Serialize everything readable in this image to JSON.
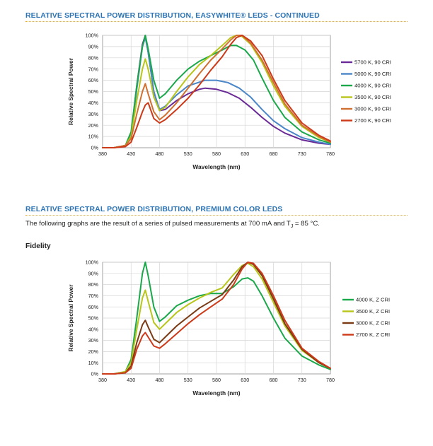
{
  "headings": {
    "easywhite": "RELATIVE SPECTRAL POWER DISTRIBUTION, EASYWHITE® LEDS - CONTINUED",
    "premium": "RELATIVE SPECTRAL POWER DISTRIBUTION, PREMIUM COLOR LEDS"
  },
  "intro": {
    "text_before": "The following graphs are the result of a series of pulsed measurements at 700 mA and T",
    "subscript": "J",
    "text_after": " = 85 °C."
  },
  "subheading": "Fidelity",
  "chart_data": [
    {
      "type": "line",
      "xlabel": "Wavelength (nm)",
      "ylabel": "Relative Spectral Power",
      "xlim": [
        380,
        780
      ],
      "ylim": [
        0,
        100
      ],
      "xticks": [
        "380",
        "430",
        "480",
        "530",
        "580",
        "630",
        "680",
        "730",
        "780"
      ],
      "yticks": [
        "0%",
        "10%",
        "20%",
        "30%",
        "40%",
        "50%",
        "60%",
        "70%",
        "80%",
        "90%",
        "100%"
      ],
      "grid": true,
      "legend_position": "right",
      "series": [
        {
          "name": "5700 K, 90 CRI",
          "color": "#6a2a96",
          "points": [
            [
              380,
              0
            ],
            [
              400,
              0
            ],
            [
              420,
              2
            ],
            [
              430,
              12
            ],
            [
              440,
              55
            ],
            [
              450,
              92
            ],
            [
              455,
              100
            ],
            [
              460,
              85
            ],
            [
              470,
              50
            ],
            [
              480,
              33
            ],
            [
              490,
              34
            ],
            [
              510,
              42
            ],
            [
              530,
              48
            ],
            [
              550,
              52
            ],
            [
              560,
              53
            ],
            [
              580,
              52
            ],
            [
              600,
              49
            ],
            [
              620,
              44
            ],
            [
              640,
              36
            ],
            [
              660,
              27
            ],
            [
              680,
              19
            ],
            [
              700,
              13
            ],
            [
              730,
              7
            ],
            [
              760,
              4
            ],
            [
              780,
              3
            ]
          ]
        },
        {
          "name": "5000 K, 90 CRI",
          "color": "#4a86c8",
          "points": [
            [
              380,
              0
            ],
            [
              400,
              0
            ],
            [
              420,
              2
            ],
            [
              430,
              12
            ],
            [
              440,
              52
            ],
            [
              450,
              90
            ],
            [
              455,
              98
            ],
            [
              460,
              85
            ],
            [
              470,
              50
            ],
            [
              480,
              34
            ],
            [
              490,
              37
            ],
            [
              510,
              47
            ],
            [
              530,
              55
            ],
            [
              560,
              60
            ],
            [
              580,
              60
            ],
            [
              600,
              58
            ],
            [
              620,
              53
            ],
            [
              640,
              45
            ],
            [
              660,
              34
            ],
            [
              680,
              24
            ],
            [
              700,
              17
            ],
            [
              730,
              9
            ],
            [
              760,
              5
            ],
            [
              780,
              3
            ]
          ]
        },
        {
          "name": "4000 K, 90 CRI",
          "color": "#1aa84a",
          "points": [
            [
              380,
              0
            ],
            [
              400,
              0
            ],
            [
              420,
              2
            ],
            [
              430,
              14
            ],
            [
              440,
              55
            ],
            [
              450,
              90
            ],
            [
              455,
              100
            ],
            [
              460,
              88
            ],
            [
              470,
              60
            ],
            [
              480,
              44
            ],
            [
              490,
              48
            ],
            [
              510,
              60
            ],
            [
              530,
              70
            ],
            [
              550,
              77
            ],
            [
              570,
              82
            ],
            [
              590,
              87
            ],
            [
              605,
              91
            ],
            [
              615,
              91
            ],
            [
              630,
              87
            ],
            [
              645,
              78
            ],
            [
              660,
              62
            ],
            [
              680,
              42
            ],
            [
              700,
              27
            ],
            [
              730,
              14
            ],
            [
              760,
              7
            ],
            [
              780,
              4
            ]
          ]
        },
        {
          "name": "3500 K, 90 CRI",
          "color": "#b8c51a",
          "points": [
            [
              380,
              0
            ],
            [
              400,
              0
            ],
            [
              420,
              2
            ],
            [
              430,
              10
            ],
            [
              440,
              42
            ],
            [
              450,
              70
            ],
            [
              455,
              79
            ],
            [
              460,
              70
            ],
            [
              470,
              45
            ],
            [
              480,
              33
            ],
            [
              490,
              36
            ],
            [
              510,
              50
            ],
            [
              530,
              63
            ],
            [
              550,
              74
            ],
            [
              570,
              82
            ],
            [
              590,
              91
            ],
            [
              605,
              98
            ],
            [
              615,
              100
            ],
            [
              625,
              99
            ],
            [
              640,
              92
            ],
            [
              660,
              76
            ],
            [
              680,
              55
            ],
            [
              700,
              37
            ],
            [
              730,
              19
            ],
            [
              760,
              9
            ],
            [
              780,
              5
            ]
          ]
        },
        {
          "name": "3000 K, 90 CRI",
          "color": "#d07030",
          "points": [
            [
              380,
              0
            ],
            [
              400,
              0
            ],
            [
              420,
              2
            ],
            [
              430,
              8
            ],
            [
              440,
              30
            ],
            [
              450,
              50
            ],
            [
              455,
              57
            ],
            [
              460,
              48
            ],
            [
              470,
              32
            ],
            [
              480,
              25
            ],
            [
              490,
              29
            ],
            [
              510,
              40
            ],
            [
              530,
              53
            ],
            [
              550,
              66
            ],
            [
              570,
              78
            ],
            [
              590,
              88
            ],
            [
              605,
              96
            ],
            [
              615,
              100
            ],
            [
              625,
              100
            ],
            [
              640,
              93
            ],
            [
              660,
              78
            ],
            [
              680,
              58
            ],
            [
              700,
              39
            ],
            [
              730,
              20
            ],
            [
              760,
              10
            ],
            [
              780,
              5
            ]
          ]
        },
        {
          "name": "2700 K, 90 CRI",
          "color": "#cc3a1a",
          "points": [
            [
              380,
              0
            ],
            [
              400,
              0
            ],
            [
              420,
              1
            ],
            [
              430,
              5
            ],
            [
              440,
              18
            ],
            [
              450,
              32
            ],
            [
              455,
              38
            ],
            [
              460,
              40
            ],
            [
              465,
              33
            ],
            [
              470,
              26
            ],
            [
              480,
              22
            ],
            [
              490,
              25
            ],
            [
              510,
              34
            ],
            [
              530,
              44
            ],
            [
              550,
              56
            ],
            [
              570,
              69
            ],
            [
              590,
              81
            ],
            [
              605,
              92
            ],
            [
              615,
              98
            ],
            [
              625,
              100
            ],
            [
              640,
              95
            ],
            [
              660,
              82
            ],
            [
              680,
              61
            ],
            [
              700,
              42
            ],
            [
              730,
              22
            ],
            [
              760,
              11
            ],
            [
              780,
              6
            ]
          ]
        }
      ]
    },
    {
      "type": "line",
      "xlabel": "Wavelength (nm)",
      "ylabel": "Relative Spectral Power",
      "xlim": [
        380,
        780
      ],
      "ylim": [
        0,
        100
      ],
      "xticks": [
        "380",
        "430",
        "480",
        "530",
        "580",
        "630",
        "680",
        "730",
        "780"
      ],
      "yticks": [
        "0%",
        "10%",
        "20%",
        "30%",
        "40%",
        "50%",
        "60%",
        "70%",
        "80%",
        "90%",
        "100%"
      ],
      "grid": true,
      "legend_position": "right",
      "series": [
        {
          "name": "4000 K, Z CRI",
          "color": "#1aa84a",
          "points": [
            [
              380,
              0
            ],
            [
              400,
              0
            ],
            [
              420,
              2
            ],
            [
              430,
              13
            ],
            [
              440,
              50
            ],
            [
              450,
              90
            ],
            [
              455,
              100
            ],
            [
              460,
              88
            ],
            [
              470,
              60
            ],
            [
              480,
              47
            ],
            [
              490,
              51
            ],
            [
              510,
              61
            ],
            [
              530,
              66
            ],
            [
              550,
              70
            ],
            [
              570,
              72
            ],
            [
              590,
              72
            ],
            [
              610,
              78
            ],
            [
              625,
              85
            ],
            [
              635,
              86
            ],
            [
              645,
              83
            ],
            [
              660,
              70
            ],
            [
              680,
              50
            ],
            [
              700,
              32
            ],
            [
              730,
              16
            ],
            [
              760,
              8
            ],
            [
              780,
              4
            ]
          ]
        },
        {
          "name": "3500 K, Z CRI",
          "color": "#b8c51a",
          "points": [
            [
              380,
              0
            ],
            [
              400,
              0
            ],
            [
              420,
              2
            ],
            [
              430,
              10
            ],
            [
              440,
              40
            ],
            [
              450,
              68
            ],
            [
              455,
              75
            ],
            [
              460,
              65
            ],
            [
              470,
              46
            ],
            [
              480,
              40
            ],
            [
              490,
              45
            ],
            [
              510,
              55
            ],
            [
              530,
              62
            ],
            [
              550,
              68
            ],
            [
              570,
              73
            ],
            [
              590,
              77
            ],
            [
              610,
              89
            ],
            [
              625,
              97
            ],
            [
              635,
              99
            ],
            [
              645,
              96
            ],
            [
              660,
              85
            ],
            [
              680,
              64
            ],
            [
              700,
              43
            ],
            [
              730,
              21
            ],
            [
              760,
              10
            ],
            [
              780,
              5
            ]
          ]
        },
        {
          "name": "3000 K, Z CRI",
          "color": "#7a3a14",
          "points": [
            [
              380,
              0
            ],
            [
              400,
              0
            ],
            [
              420,
              1
            ],
            [
              430,
              7
            ],
            [
              440,
              28
            ],
            [
              450,
              44
            ],
            [
              455,
              48
            ],
            [
              460,
              42
            ],
            [
              470,
              31
            ],
            [
              480,
              28
            ],
            [
              490,
              33
            ],
            [
              510,
              43
            ],
            [
              530,
              51
            ],
            [
              550,
              59
            ],
            [
              570,
              65
            ],
            [
              590,
              71
            ],
            [
              610,
              84
            ],
            [
              625,
              96
            ],
            [
              635,
              100
            ],
            [
              645,
              98
            ],
            [
              660,
              88
            ],
            [
              680,
              67
            ],
            [
              700,
              45
            ],
            [
              730,
              22
            ],
            [
              760,
              10
            ],
            [
              780,
              5
            ]
          ]
        },
        {
          "name": "2700 K, Z CRI",
          "color": "#cc3a1a",
          "points": [
            [
              380,
              0
            ],
            [
              400,
              0
            ],
            [
              420,
              1
            ],
            [
              430,
              5
            ],
            [
              440,
              22
            ],
            [
              450,
              34
            ],
            [
              455,
              37
            ],
            [
              460,
              33
            ],
            [
              470,
              25
            ],
            [
              480,
              23
            ],
            [
              490,
              27
            ],
            [
              510,
              36
            ],
            [
              530,
              45
            ],
            [
              550,
              53
            ],
            [
              570,
              60
            ],
            [
              590,
              67
            ],
            [
              610,
              80
            ],
            [
              625,
              94
            ],
            [
              635,
              100
            ],
            [
              645,
              99
            ],
            [
              660,
              90
            ],
            [
              680,
              70
            ],
            [
              700,
              48
            ],
            [
              730,
              23
            ],
            [
              760,
              11
            ],
            [
              780,
              5
            ]
          ]
        }
      ]
    }
  ]
}
